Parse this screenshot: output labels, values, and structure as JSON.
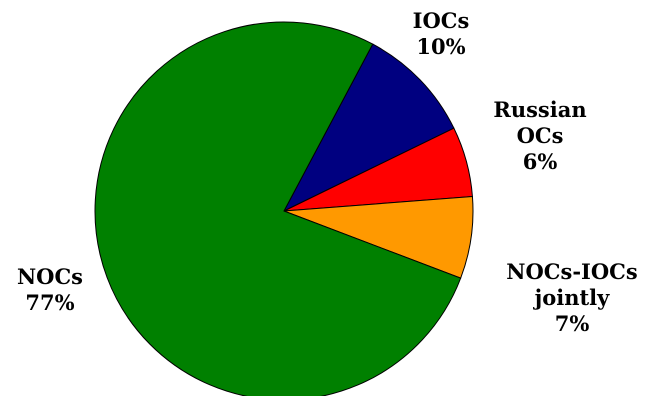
{
  "chart_data": {
    "type": "pie",
    "title": "",
    "start_angle_deg": 62,
    "direction": "clockwise",
    "slices": [
      {
        "label_lines": [
          "IOCs"
        ],
        "pct_text": "10%",
        "value": 10,
        "color": "#000080"
      },
      {
        "label_lines": [
          "Russian",
          "OCs"
        ],
        "pct_text": "6%",
        "value": 6,
        "color": "#ff0000"
      },
      {
        "label_lines": [
          "NOCs-IOCs",
          "jointly"
        ],
        "pct_text": "7%",
        "value": 7,
        "color": "#ff9900"
      },
      {
        "label_lines": [
          "NOCs"
        ],
        "pct_text": "77%",
        "value": 77,
        "color": "#008000"
      }
    ]
  }
}
